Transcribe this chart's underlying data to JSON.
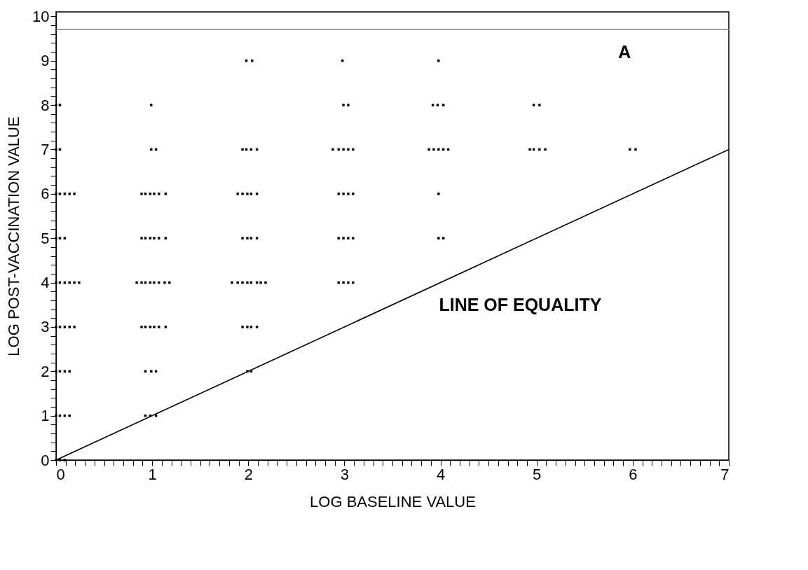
{
  "chart_data": {
    "type": "scatter",
    "xlabel": "LOG BASELINE VALUE",
    "ylabel": "LOG POST-VACCINATION VALUE",
    "annotations": [
      "A",
      "LINE OF EQUALITY"
    ],
    "xlim": [
      0,
      7
    ],
    "ylim": [
      0,
      10.1
    ],
    "xticks": [
      0,
      {
        "value": 0.1,
        "label": null
      },
      {
        "value": 0.2,
        "label": null
      },
      {
        "value": 0.3,
        "label": null
      },
      {
        "value": 0.4,
        "label": null
      },
      {
        "value": 0.5,
        "label": null
      },
      {
        "value": 0.6,
        "label": null
      },
      {
        "value": 0.7,
        "label": null
      },
      {
        "value": 0.8,
        "label": null
      },
      {
        "value": 0.9,
        "label": null
      },
      1,
      {
        "value": 1.1,
        "label": null
      },
      {
        "value": 1.2,
        "label": null
      },
      {
        "value": 1.3,
        "label": null
      },
      {
        "value": 1.4,
        "label": null
      },
      {
        "value": 1.5,
        "label": null
      },
      {
        "value": 1.6,
        "label": null
      },
      {
        "value": 1.7,
        "label": null
      },
      {
        "value": 1.8,
        "label": null
      },
      {
        "value": 1.9,
        "label": null
      },
      2,
      {
        "value": 2.1,
        "label": null
      },
      {
        "value": 2.2,
        "label": null
      },
      {
        "value": 2.3,
        "label": null
      },
      {
        "value": 2.4,
        "label": null
      },
      {
        "value": 2.5,
        "label": null
      },
      {
        "value": 2.6,
        "label": null
      },
      {
        "value": 2.7,
        "label": null
      },
      {
        "value": 2.8,
        "label": null
      },
      {
        "value": 2.9,
        "label": null
      },
      3,
      {
        "value": 3.1,
        "label": null
      },
      {
        "value": 3.2,
        "label": null
      },
      {
        "value": 3.3,
        "label": null
      },
      {
        "value": 3.4,
        "label": null
      },
      {
        "value": 3.5,
        "label": null
      },
      {
        "value": 3.6,
        "label": null
      },
      {
        "value": 3.7,
        "label": null
      },
      {
        "value": 3.8,
        "label": null
      },
      {
        "value": 3.9,
        "label": null
      },
      4,
      {
        "value": 4.1,
        "label": null
      },
      {
        "value": 4.2,
        "label": null
      },
      {
        "value": 4.3,
        "label": null
      },
      {
        "value": 4.4,
        "label": null
      },
      {
        "value": 4.5,
        "label": null
      },
      {
        "value": 4.6,
        "label": null
      },
      {
        "value": 4.7,
        "label": null
      },
      {
        "value": 4.8,
        "label": null
      },
      {
        "value": 4.9,
        "label": null
      },
      5,
      {
        "value": 5.1,
        "label": null
      },
      {
        "value": 5.2,
        "label": null
      },
      {
        "value": 5.3,
        "label": null
      },
      {
        "value": 5.4,
        "label": null
      },
      {
        "value": 5.5,
        "label": null
      },
      {
        "value": 5.6,
        "label": null
      },
      {
        "value": 5.7,
        "label": null
      },
      {
        "value": 5.8,
        "label": null
      },
      {
        "value": 5.9,
        "label": null
      },
      6,
      {
        "value": 6.1,
        "label": null
      },
      {
        "value": 6.2,
        "label": null
      },
      {
        "value": 6.3,
        "label": null
      },
      {
        "value": 6.4,
        "label": null
      },
      {
        "value": 6.5,
        "label": null
      },
      {
        "value": 6.6,
        "label": null
      },
      {
        "value": 6.7,
        "label": null
      },
      {
        "value": 6.8,
        "label": null
      },
      {
        "value": 6.9,
        "label": null
      },
      7
    ],
    "yticks": [
      0,
      {
        "value": 0.2,
        "label": null
      },
      {
        "value": 0.4,
        "label": null
      },
      {
        "value": 0.6,
        "label": null
      },
      {
        "value": 0.8,
        "label": null
      },
      1,
      {
        "value": 1.2,
        "label": null
      },
      {
        "value": 1.4,
        "label": null
      },
      {
        "value": 1.6,
        "label": null
      },
      {
        "value": 1.8,
        "label": null
      },
      2,
      {
        "value": 2.2,
        "label": null
      },
      {
        "value": 2.4,
        "label": null
      },
      {
        "value": 2.6,
        "label": null
      },
      {
        "value": 2.8,
        "label": null
      },
      3,
      {
        "value": 3.2,
        "label": null
      },
      {
        "value": 3.4,
        "label": null
      },
      {
        "value": 3.6,
        "label": null
      },
      {
        "value": 3.8,
        "label": null
      },
      4,
      {
        "value": 4.2,
        "label": null
      },
      {
        "value": 4.4,
        "label": null
      },
      {
        "value": 4.6,
        "label": null
      },
      {
        "value": 4.8,
        "label": null
      },
      5,
      {
        "value": 5.2,
        "label": null
      },
      {
        "value": 5.4,
        "label": null
      },
      {
        "value": 5.6,
        "label": null
      },
      {
        "value": 5.8,
        "label": null
      },
      6,
      {
        "value": 6.2,
        "label": null
      },
      {
        "value": 6.4,
        "label": null
      },
      {
        "value": 6.6,
        "label": null
      },
      {
        "value": 6.8,
        "label": null
      },
      7,
      {
        "value": 7.2,
        "label": null
      },
      {
        "value": 7.4,
        "label": null
      },
      {
        "value": 7.6,
        "label": null
      },
      {
        "value": 7.8,
        "label": null
      },
      8,
      {
        "value": 8.2,
        "label": null
      },
      {
        "value": 8.4,
        "label": null
      },
      {
        "value": 8.6,
        "label": null
      },
      {
        "value": 8.8,
        "label": null
      },
      9,
      {
        "value": 9.2,
        "label": null
      },
      {
        "value": 9.4,
        "label": null
      },
      {
        "value": 9.6,
        "label": null
      },
      {
        "value": 9.8,
        "label": null
      },
      10
    ],
    "ref_lines": [
      {
        "axis": "y",
        "value": 9.7,
        "color": "#808080"
      }
    ],
    "series": [
      {
        "marker": "square",
        "color": "#000000",
        "x": [
          1.98,
          2.04,
          2.98,
          3.98,
          0.0,
          0.04,
          0.99,
          2.99,
          3.04,
          3.92,
          3.97,
          4.03,
          4.97,
          5.03,
          0.0,
          0.04,
          0.99,
          1.04,
          1.94,
          1.98,
          2.03,
          2.09,
          2.88,
          2.94,
          2.99,
          3.04,
          3.09,
          3.88,
          3.93,
          3.98,
          4.03,
          4.08,
          4.93,
          4.97,
          5.03,
          5.09,
          5.97,
          6.03,
          0.0,
          0.04,
          0.09,
          0.14,
          0.19,
          0.89,
          0.93,
          0.98,
          1.02,
          1.07,
          1.14,
          1.89,
          1.94,
          1.99,
          2.03,
          2.09,
          2.94,
          2.99,
          3.04,
          3.09,
          3.98,
          0.0,
          0.04,
          0.09,
          0.89,
          0.93,
          0.98,
          1.02,
          1.07,
          1.14,
          1.94,
          1.99,
          2.03,
          2.09,
          2.94,
          2.99,
          3.04,
          3.09,
          3.98,
          4.03,
          0.0,
          0.04,
          0.09,
          0.14,
          0.19,
          0.24,
          0.84,
          0.89,
          0.93,
          0.98,
          1.02,
          1.07,
          1.13,
          1.18,
          1.83,
          1.89,
          1.94,
          1.99,
          2.03,
          2.09,
          2.13,
          2.18,
          2.94,
          2.99,
          3.04,
          3.09,
          0.0,
          0.04,
          0.09,
          0.14,
          0.19,
          0.89,
          0.93,
          0.98,
          1.02,
          1.07,
          1.14,
          1.94,
          1.99,
          2.03,
          2.09,
          0.0,
          0.04,
          0.09,
          0.14,
          0.93,
          0.99,
          1.04,
          1.99,
          2.03,
          0.0,
          0.04,
          0.09,
          0.14,
          0.93,
          0.98,
          1.04,
          0.0,
          0.04,
          0.09
        ],
        "values": [
          9,
          9,
          9,
          9,
          8,
          8,
          8,
          8,
          8,
          8,
          8,
          8,
          8,
          8,
          7,
          7,
          7,
          7,
          7,
          7,
          7,
          7,
          7,
          7,
          7,
          7,
          7,
          7,
          7,
          7,
          7,
          7,
          7,
          7,
          7,
          7,
          7,
          7,
          6,
          6,
          6,
          6,
          6,
          6,
          6,
          6,
          6,
          6,
          6,
          6,
          6,
          6,
          6,
          6,
          6,
          6,
          6,
          6,
          6,
          5,
          5,
          5,
          5,
          5,
          5,
          5,
          5,
          5,
          5,
          5,
          5,
          5,
          5,
          5,
          5,
          5,
          5,
          5,
          4,
          4,
          4,
          4,
          4,
          4,
          4,
          4,
          4,
          4,
          4,
          4,
          4,
          4,
          4,
          4,
          4,
          4,
          4,
          4,
          4,
          4,
          4,
          4,
          4,
          4,
          3,
          3,
          3,
          3,
          3,
          3,
          3,
          3,
          3,
          3,
          3,
          3,
          3,
          3,
          3,
          2,
          2,
          2,
          2,
          2,
          2,
          2,
          2,
          2,
          1,
          1,
          1,
          1,
          1,
          1,
          1,
          0,
          0,
          0
        ]
      },
      {
        "type": "line",
        "color": "#000000",
        "x": [
          0,
          7
        ],
        "values": [
          0,
          7
        ]
      }
    ]
  }
}
